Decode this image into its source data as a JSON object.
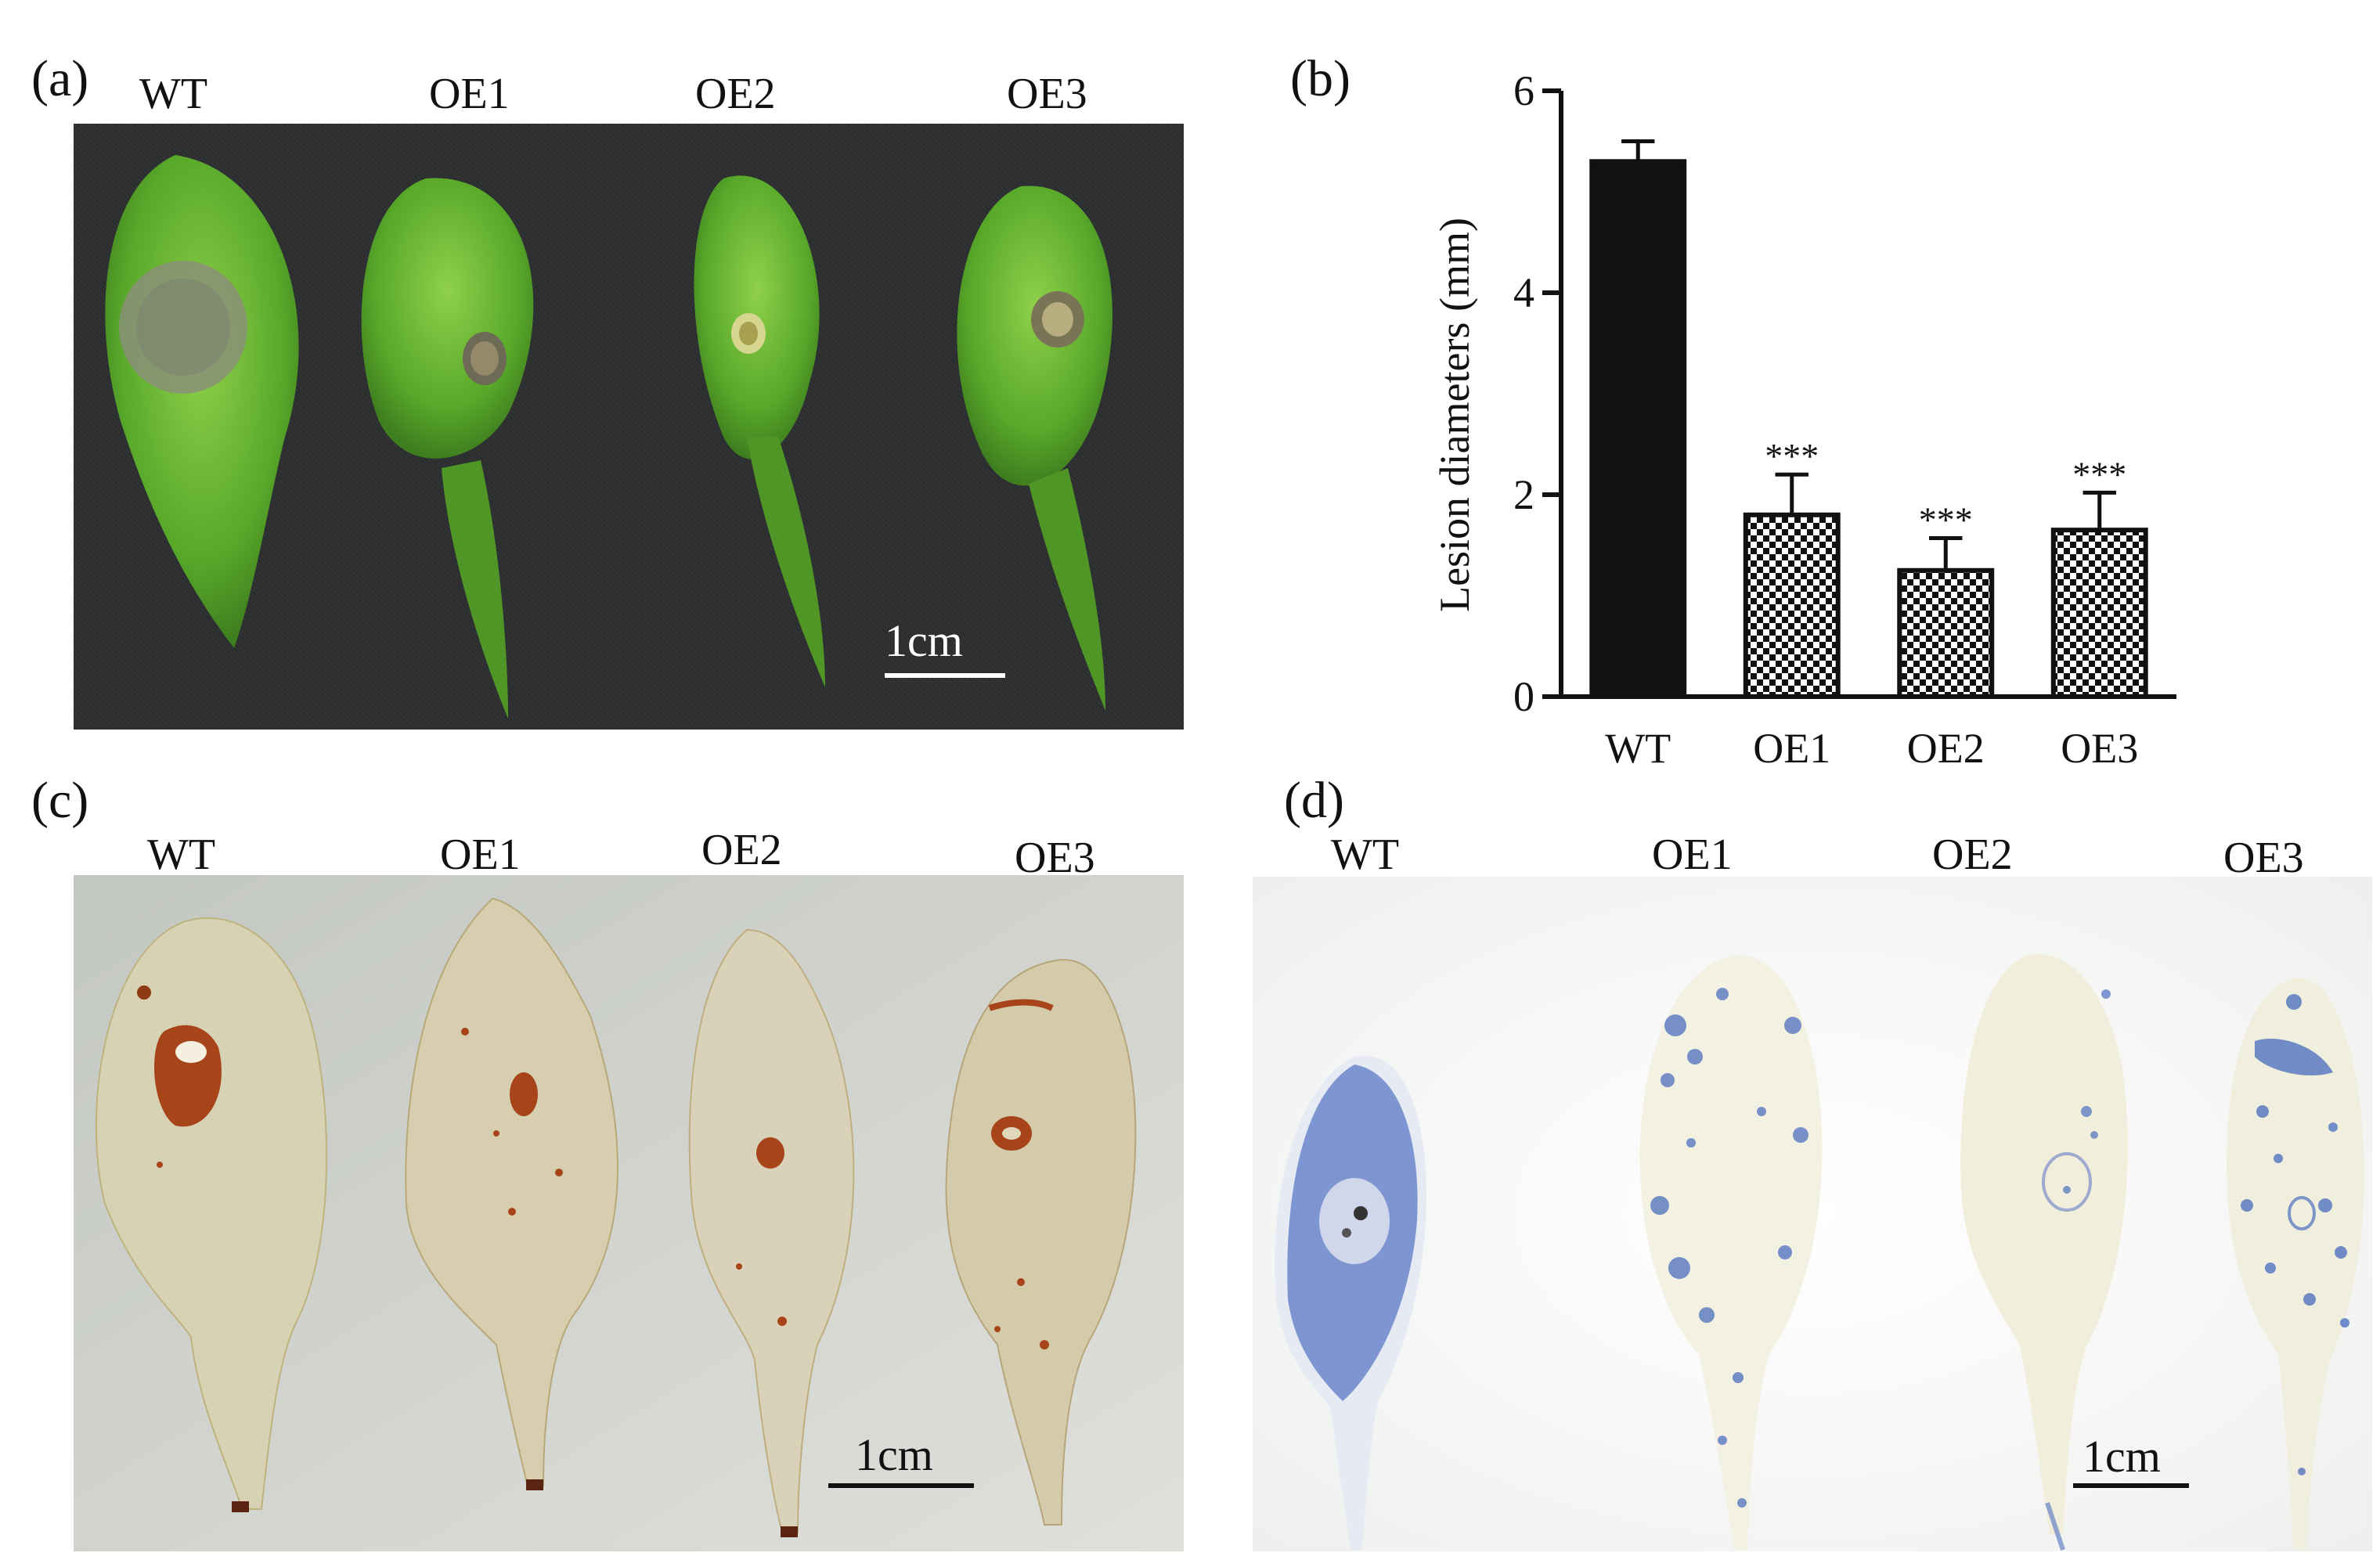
{
  "panels": {
    "a": {
      "letter": "(a)",
      "labels": [
        "WT",
        "OE1",
        "OE2",
        "OE3"
      ],
      "scale_bar": "1cm"
    },
    "b": {
      "letter": "(b)"
    },
    "c": {
      "letter": "(c)",
      "labels": [
        "WT",
        "OE1",
        "OE2",
        "OE3"
      ],
      "scale_bar": "1cm"
    },
    "d": {
      "letter": "(d)",
      "labels": [
        "WT",
        "OE1",
        "OE2",
        "OE3"
      ],
      "scale_bar": "1cm"
    }
  },
  "chart_data": {
    "type": "bar",
    "categories": [
      "WT",
      "OE1",
      "OE2",
      "OE3"
    ],
    "values": [
      5.3,
      1.8,
      1.25,
      1.65
    ],
    "errors": [
      0.2,
      0.4,
      0.32,
      0.37
    ],
    "significance": [
      "",
      "***",
      "***",
      "***"
    ],
    "fills": [
      "solid-black",
      "checkered",
      "checkered",
      "checkered"
    ],
    "xlabel": "",
    "ylabel": "Lesion diameters (mm)",
    "ylim": [
      0,
      6
    ],
    "yticks": [
      0,
      2,
      4,
      6
    ],
    "grid": false,
    "legend": "none"
  },
  "colors": {
    "photo_a_background": "#2b2d2f",
    "leaf_green": "#5fb32e",
    "photo_c_background": "#c9ccc6",
    "photo_d_background": "#fafafa",
    "dab_stain": "#a8441a",
    "trypan_stain": "#4d6fbf"
  }
}
